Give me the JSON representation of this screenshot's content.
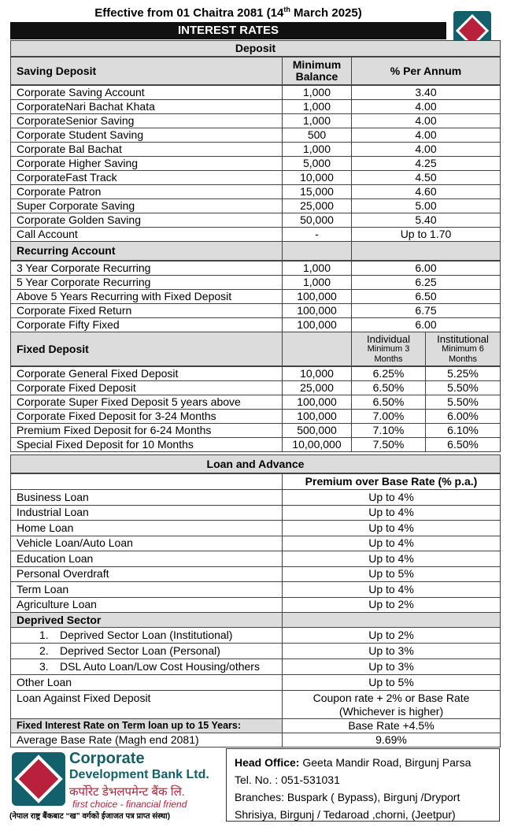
{
  "header": {
    "effective_prefix": "Effective from 01 Chaitra 2081 (14",
    "effective_sup": "th",
    "effective_suffix": " March 2025)",
    "title": "INTEREST RATES"
  },
  "deposit": {
    "title": "Deposit",
    "saving": {
      "columns": [
        "Saving Deposit",
        "Minimum Balance",
        "% Per Annum"
      ],
      "rows": [
        [
          "Corporate Saving Account",
          "1,000",
          "3.40"
        ],
        [
          "CorporateNari Bachat Khata",
          "1,000",
          "4.00"
        ],
        [
          "CorporateSenior Saving",
          "1,000",
          "4.00"
        ],
        [
          "Corporate Student Saving",
          "500",
          "4.00"
        ],
        [
          "Corporate Bal Bachat",
          "1,000",
          "4.00"
        ],
        [
          "Corporate Higher Saving",
          "5,000",
          "4.25"
        ],
        [
          "CorporateFast Track",
          "10,000",
          "4.50"
        ],
        [
          "Corporate Patron",
          "15,000",
          "4.60"
        ],
        [
          "Super Corporate Saving",
          "25,000",
          "5.00"
        ],
        [
          "Corporate Golden Saving",
          "50,000",
          "5.40"
        ],
        [
          "Call Account",
          "-",
          "Up to 1.70"
        ]
      ]
    },
    "recurring": {
      "title": "Recurring Account",
      "rows": [
        [
          "3 Year Corporate Recurring",
          "1,000",
          "6.00"
        ],
        [
          "5 Year Corporate Recurring",
          "1,000",
          "6.25"
        ],
        [
          "Above 5 Years Recurring with Fixed Deposit",
          "100,000",
          "6.50"
        ],
        [
          "Corporate Fixed Return",
          "100,000",
          "6.75"
        ],
        [
          "Corporate Fifty Fixed",
          "100,000",
          "6.00"
        ]
      ]
    },
    "fixed": {
      "title": "Fixed Deposit",
      "columns": [
        [
          "Individual",
          "Minimum 3 Months"
        ],
        [
          "Institutional",
          "Minimum 6 Months"
        ]
      ],
      "rows": [
        [
          "Corporate General Fixed Deposit",
          "10,000",
          "6.25%",
          "5.25%"
        ],
        [
          "Corporate Fixed Deposit",
          "25,000",
          "6.50%",
          "5.50%"
        ],
        [
          "Corporate Super Fixed Deposit 5 years above",
          "100,000",
          "6.50%",
          "5.50%"
        ],
        [
          "Corporate Fixed Deposit for 3-24 Months",
          "100,000",
          "7.00%",
          "6.00%"
        ],
        [
          "Premium Fixed Deposit for 6-24 Months",
          "500,000",
          "7.10%",
          "6.10%"
        ],
        [
          "Special Fixed Deposit for 10 Months",
          "10,00,000",
          "7.50%",
          "6.50%"
        ]
      ]
    }
  },
  "loan": {
    "title": "Loan and Advance",
    "column": "Premium over Base Rate (% p.a.)",
    "rows": [
      [
        "Business Loan",
        "Up to 4%"
      ],
      [
        "Industrial Loan",
        "Up to 4%"
      ],
      [
        "Home Loan",
        "Up to 4%"
      ],
      [
        "Vehicle Loan/Auto Loan",
        "Up to 4%"
      ],
      [
        "Education Loan",
        "Up to 4%"
      ],
      [
        "Personal Overdraft",
        "Up to 5%"
      ],
      [
        "Term Loan",
        "Up to 4%"
      ],
      [
        "Agriculture Loan",
        "Up to 2%"
      ]
    ],
    "deprived": {
      "title": "Deprived Sector",
      "rows": [
        {
          "number": "1.",
          "label": "Deprived Sector Loan (Institutional)",
          "value": "Up to 2%"
        },
        {
          "number": "2.",
          "label": "Deprived Sector Loan (Personal)",
          "value": "Up to 3%"
        },
        {
          "number": "3.",
          "label": "DSL Auto Loan/Low Cost Housing/others",
          "value": "Up to 3%"
        }
      ]
    },
    "other": [
      "Other Loan",
      "Up to 5%"
    ],
    "against_fd": {
      "label": "Loan Against Fixed Deposit",
      "value": [
        "Coupon rate + 2% or Base Rate",
        "(Whichever is higher)"
      ]
    },
    "fixed_rate": [
      "Fixed Interest Rate on Term loan up to 15 Years:",
      "Base Rate +4.5%"
    ],
    "base_rate": [
      "Average Base Rate (Magh end 2081)",
      "9.69%"
    ]
  },
  "footer": {
    "name_1": "Corporate",
    "name_2": "Development Bank Ltd.",
    "name_nepali": "कर्पोरेट डेभलपमेन्ट बैंक लि.",
    "tagline": "first choice - financial friend",
    "license": "(नेपाल राष्ट्र बैंकबाट “ख” वर्गको ईजाजत पत्र प्राप्त संस्था)",
    "head_office_label": "Head Office:",
    "head_office": "Geeta Mandir Road, Birgunj Parsa",
    "tel": "Tel. No. : 051-531031",
    "branches": "Branches: Buspark ( Bypass), Birgunj /Dryport Shrisiya, Birgunj / Tedaroad ,chorni, (Jeetpur)"
  }
}
